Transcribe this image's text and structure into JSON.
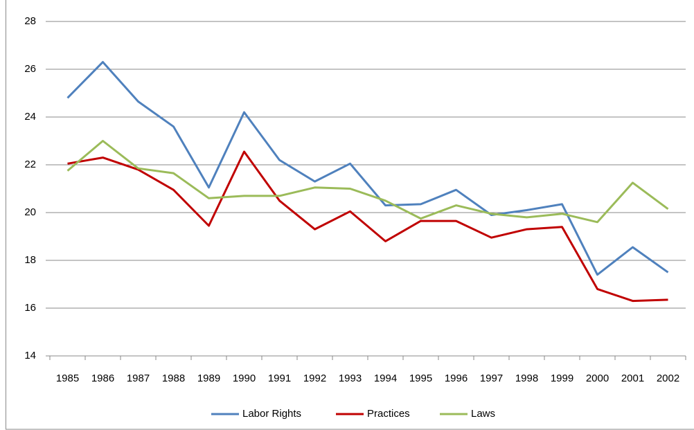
{
  "chart_data": {
    "type": "line",
    "categories": [
      "1985",
      "1986",
      "1987",
      "1988",
      "1989",
      "1990",
      "1991",
      "1992",
      "1993",
      "1994",
      "1995",
      "1996",
      "1997",
      "1998",
      "1999",
      "2000",
      "2001",
      "2002"
    ],
    "series": [
      {
        "name": "Labor Rights",
        "color": "#4f81bd",
        "values": [
          24.8,
          26.3,
          24.65,
          23.6,
          21.05,
          24.2,
          22.2,
          21.3,
          22.05,
          20.3,
          20.35,
          20.95,
          19.9,
          20.1,
          20.35,
          17.4,
          18.55,
          17.5
        ]
      },
      {
        "name": "Practices",
        "color": "#c00000",
        "values": [
          22.05,
          22.3,
          21.8,
          20.95,
          19.45,
          22.55,
          20.5,
          19.3,
          20.05,
          18.8,
          19.65,
          19.65,
          18.95,
          19.3,
          19.4,
          16.8,
          16.3,
          16.35
        ]
      },
      {
        "name": "Laws",
        "color": "#9bbb59",
        "values": [
          21.75,
          23.0,
          21.85,
          21.65,
          20.6,
          20.7,
          20.7,
          21.05,
          21.0,
          20.5,
          19.75,
          20.3,
          19.95,
          19.8,
          19.95,
          19.6,
          21.25,
          20.15
        ]
      }
    ],
    "ylim": [
      14,
      28
    ],
    "yticks": [
      14,
      16,
      18,
      20,
      22,
      24,
      26,
      28
    ],
    "grid": true,
    "legend": "bottom"
  }
}
